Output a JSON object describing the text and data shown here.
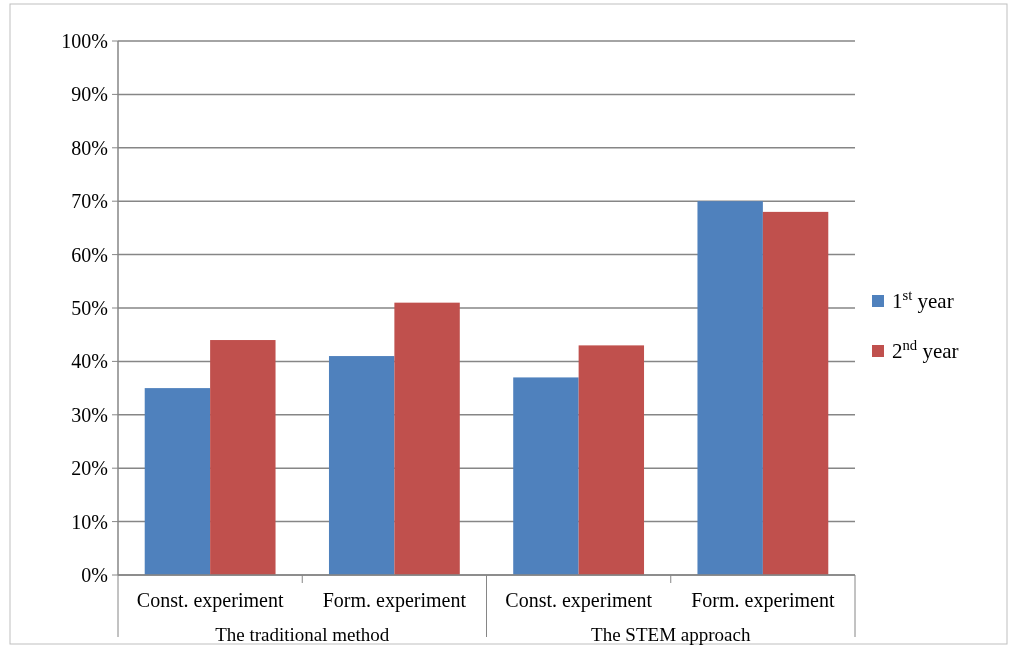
{
  "chart_data": {
    "type": "bar",
    "categories": [
      "Const. experiment",
      "Form. experiment",
      "Const. experiment",
      "Form. experiment"
    ],
    "series": [
      {
        "name": "1$^{st}$ year",
        "color": "#4f81bd",
        "values": [
          35,
          41,
          37,
          70
        ]
      },
      {
        "name": "2$^{nd}$ year",
        "color": "#c0504d",
        "values": [
          44,
          51,
          43,
          68
        ]
      }
    ],
    "ylim": [
      0,
      100
    ],
    "yticks": [
      {
        "value": 0,
        "label": "0%"
      },
      {
        "value": 10,
        "label": "10%"
      },
      {
        "value": 20,
        "label": "20%"
      },
      {
        "value": 30,
        "label": "30%"
      },
      {
        "value": 40,
        "label": "40%"
      },
      {
        "value": 50,
        "label": "50%"
      },
      {
        "value": 60,
        "label": "60%"
      },
      {
        "value": 70,
        "label": "70%"
      },
      {
        "value": 80,
        "label": "80%"
      },
      {
        "value": 90,
        "label": "90%"
      },
      {
        "value": 100,
        "label": "100%"
      }
    ],
    "grid": "y",
    "legend": "right",
    "annotations": [
      "The traditional method",
      "The STEM approach"
    ]
  }
}
